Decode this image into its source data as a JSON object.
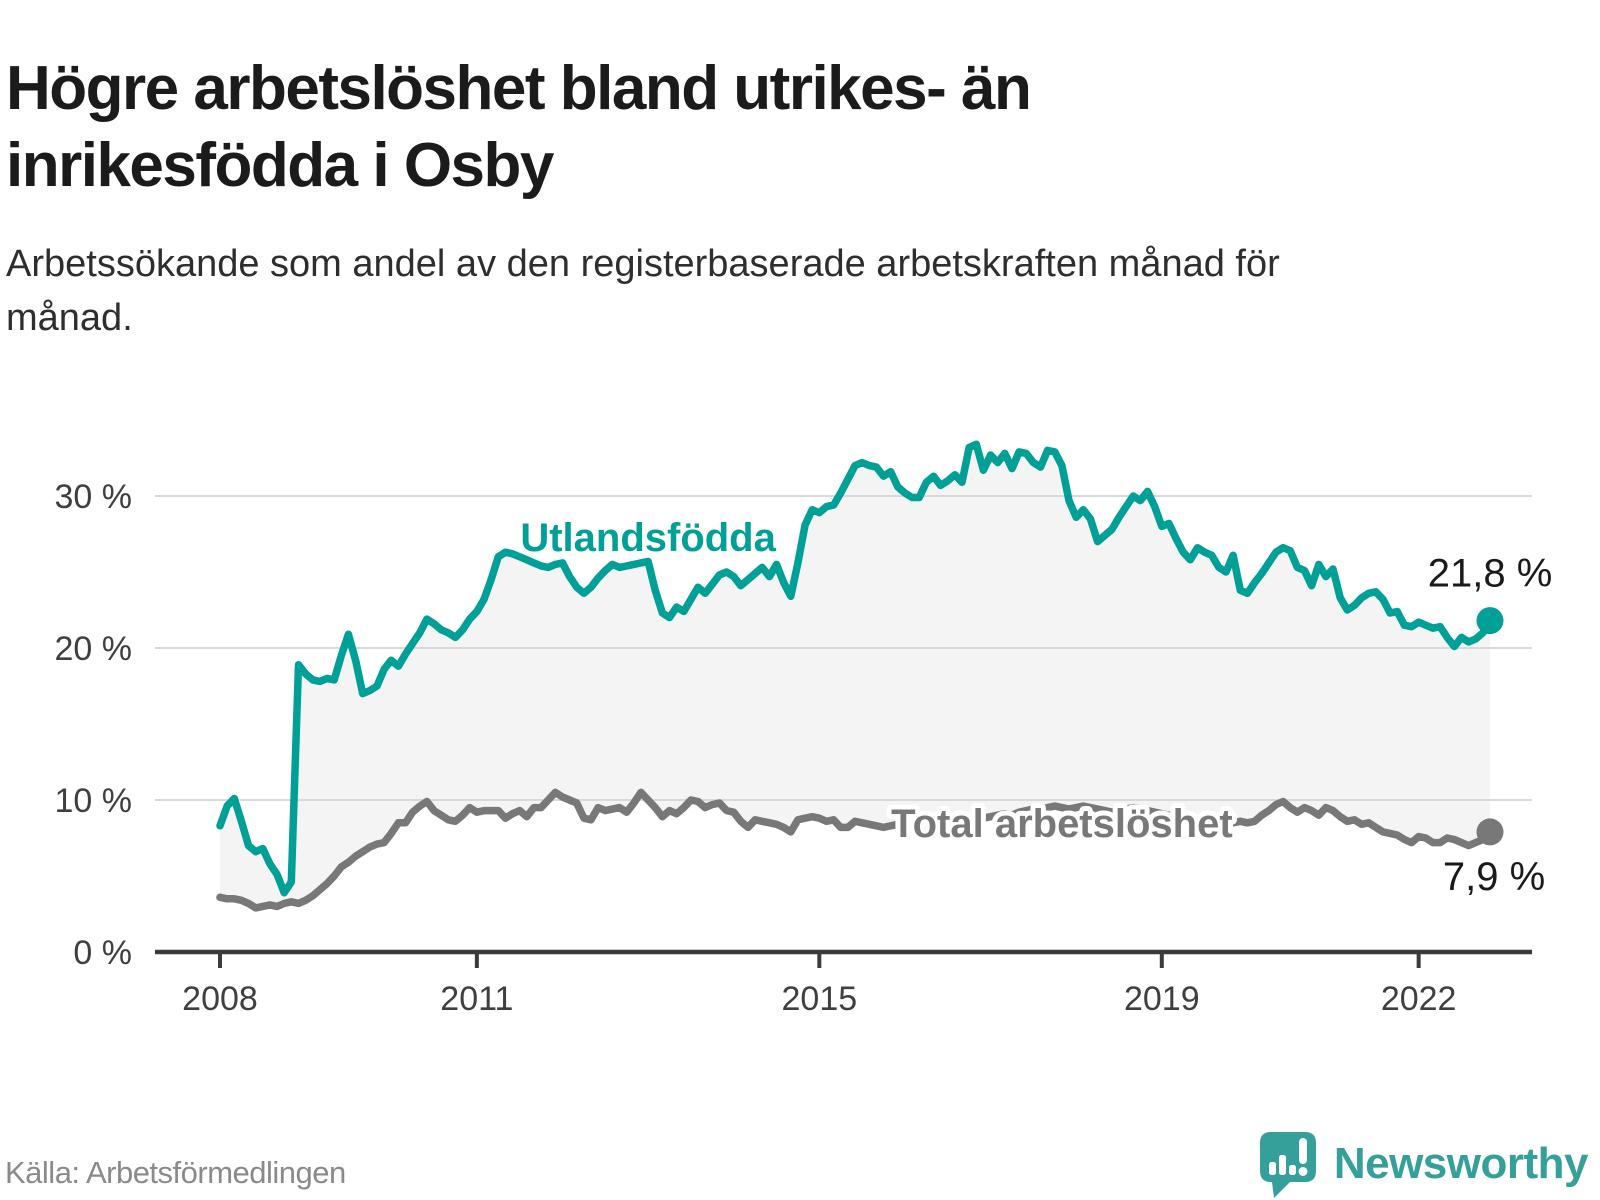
{
  "header": {
    "title": "Högre arbetslöshet bland utrikes- än inrikesfödda i Osby",
    "subtitle": "Arbetssökande som andel av den registerbaserade arbetskraften månad för månad."
  },
  "footer": {
    "source": "Källa: Arbetsförmedlingen",
    "brand": "Newsworthy",
    "brand_icon": "speech-bubble-bar-chart-exclamation"
  },
  "colors": {
    "series_utlandsfodda": "#00a096",
    "series_total": "#787878",
    "fill_between": "#f4f4f4",
    "gridline": "#d9d9d9",
    "axis": "#3b3b3b",
    "tick_label": "#3f3f3f",
    "value_label": "#1a1a1a",
    "halo": "#ffffff",
    "brand_teal": "#35a09a"
  },
  "chart_data": {
    "type": "line",
    "title": "Högre arbetslöshet bland utrikes- än inrikesfödda i Osby",
    "subtitle": "Arbetssökande som andel av den registerbaserade arbetskraften månad för månad.",
    "unit": "percent",
    "frequency": "monthly",
    "x_start": "2008-01",
    "x_end": "2022-11",
    "n_points": 179,
    "ylim": [
      0,
      35
    ],
    "grid": "horizontal",
    "y_ticks": [
      {
        "value": 0,
        "label": "0 %"
      },
      {
        "value": 10,
        "label": "10 %"
      },
      {
        "value": 20,
        "label": "20 %"
      },
      {
        "value": 30,
        "label": "30 %"
      }
    ],
    "x_ticks": [
      {
        "month_index": 0,
        "label": "2008"
      },
      {
        "month_index": 36,
        "label": "2011"
      },
      {
        "month_index": 84,
        "label": "2015"
      },
      {
        "month_index": 132,
        "label": "2019"
      },
      {
        "month_index": 168,
        "label": "2022"
      }
    ],
    "series": [
      {
        "name": "Utlandsfödda",
        "color": "#00a096",
        "end_label": "21,8 %",
        "label_anchor": {
          "month_index": 60,
          "value": 27.3
        },
        "values": [
          8.3,
          9.6,
          10.1,
          8.6,
          7.0,
          6.6,
          6.8,
          5.8,
          5.1,
          3.9,
          4.6,
          18.9,
          18.3,
          17.9,
          17.8,
          18.0,
          17.9,
          19.5,
          20.9,
          19.2,
          17.0,
          17.2,
          17.5,
          18.6,
          19.2,
          18.8,
          19.6,
          20.3,
          21.0,
          21.9,
          21.6,
          21.2,
          21.0,
          20.7,
          21.2,
          21.9,
          22.4,
          23.2,
          24.5,
          26.0,
          26.3,
          26.2,
          26.0,
          25.8,
          25.6,
          25.4,
          25.3,
          25.5,
          25.6,
          24.7,
          24.0,
          23.6,
          24.0,
          24.6,
          25.1,
          25.5,
          25.3,
          25.4,
          25.5,
          25.6,
          25.7,
          23.8,
          22.3,
          22.0,
          22.7,
          22.4,
          23.2,
          24.0,
          23.6,
          24.2,
          24.8,
          25.0,
          24.7,
          24.1,
          24.5,
          24.9,
          25.3,
          24.7,
          25.5,
          24.3,
          23.4,
          25.6,
          28.1,
          29.1,
          28.9,
          29.3,
          29.4,
          30.2,
          31.1,
          32.0,
          32.2,
          32.0,
          31.9,
          31.3,
          31.6,
          30.6,
          30.2,
          29.9,
          29.9,
          30.9,
          31.3,
          30.7,
          31.0,
          31.4,
          30.9,
          33.2,
          33.4,
          31.7,
          32.7,
          32.2,
          32.8,
          31.8,
          32.9,
          32.8,
          32.2,
          31.9,
          33.0,
          32.9,
          32.0,
          29.7,
          28.6,
          29.1,
          28.5,
          27.0,
          27.4,
          27.8,
          28.6,
          29.3,
          30.0,
          29.7,
          30.3,
          29.3,
          28.0,
          28.2,
          27.2,
          26.3,
          25.8,
          26.6,
          26.3,
          26.1,
          25.3,
          25.0,
          26.1,
          23.8,
          23.6,
          24.3,
          24.9,
          25.6,
          26.3,
          26.6,
          26.4,
          25.3,
          25.1,
          24.1,
          25.5,
          24.7,
          25.2,
          23.3,
          22.5,
          22.8,
          23.3,
          23.6,
          23.7,
          23.2,
          22.3,
          22.4,
          21.5,
          21.4,
          21.7,
          21.5,
          21.3,
          21.4,
          20.7,
          20.1,
          20.7,
          20.4,
          20.6,
          21.0,
          21.8
        ]
      },
      {
        "name": "Total arbetslöshet",
        "color": "#787878",
        "end_label": "7,9 %",
        "label_anchor": {
          "month_index": 118,
          "value": 8.5
        },
        "values": [
          3.6,
          3.5,
          3.5,
          3.4,
          3.2,
          2.9,
          3.0,
          3.1,
          3.0,
          3.2,
          3.3,
          3.2,
          3.4,
          3.7,
          4.1,
          4.5,
          5.0,
          5.6,
          5.9,
          6.3,
          6.6,
          6.9,
          7.1,
          7.2,
          7.8,
          8.5,
          8.5,
          9.2,
          9.6,
          9.9,
          9.3,
          9.0,
          8.7,
          8.6,
          9.0,
          9.5,
          9.2,
          9.3,
          9.3,
          9.3,
          8.8,
          9.1,
          9.3,
          8.9,
          9.5,
          9.5,
          10.0,
          10.5,
          10.2,
          10.0,
          9.8,
          8.8,
          8.7,
          9.5,
          9.3,
          9.4,
          9.5,
          9.2,
          9.8,
          10.5,
          10.0,
          9.5,
          8.9,
          9.3,
          9.1,
          9.5,
          10.0,
          9.9,
          9.5,
          9.7,
          9.8,
          9.3,
          9.2,
          8.6,
          8.2,
          8.7,
          8.6,
          8.5,
          8.4,
          8.2,
          7.9,
          8.7,
          8.8,
          8.9,
          8.8,
          8.6,
          8.7,
          8.2,
          8.2,
          8.6,
          8.5,
          8.4,
          8.3,
          8.2,
          8.3,
          8.4,
          8.2,
          8.1,
          8.0,
          8.1,
          8.2,
          8.3,
          8.4,
          8.3,
          8.4,
          8.5,
          8.6,
          8.8,
          8.9,
          9.0,
          9.1,
          9.0,
          9.2,
          9.3,
          9.4,
          9.3,
          9.5,
          9.6,
          9.5,
          9.4,
          9.5,
          9.6,
          9.5,
          9.4,
          9.3,
          9.2,
          9.3,
          9.4,
          9.5,
          9.4,
          9.3,
          9.2,
          9.1,
          9.0,
          8.9,
          8.8,
          8.7,
          8.6,
          8.7,
          8.6,
          8.5,
          8.4,
          8.5,
          8.6,
          8.5,
          8.6,
          9.0,
          9.3,
          9.7,
          9.9,
          9.5,
          9.2,
          9.5,
          9.3,
          9.0,
          9.5,
          9.3,
          8.9,
          8.6,
          8.7,
          8.4,
          8.5,
          8.2,
          7.9,
          7.8,
          7.7,
          7.4,
          7.2,
          7.6,
          7.5,
          7.2,
          7.2,
          7.5,
          7.4,
          7.2,
          7.0,
          7.2,
          7.4,
          7.9
        ]
      }
    ],
    "legend_position": "inline-labels",
    "fill_between_series": true
  }
}
